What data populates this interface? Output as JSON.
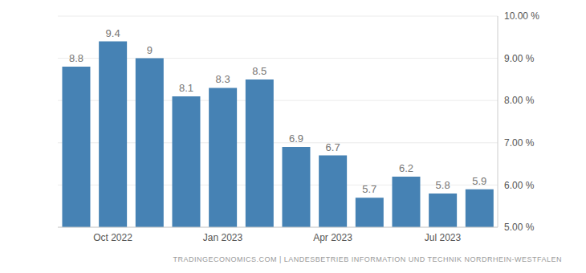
{
  "chart_data": {
    "type": "bar",
    "categories": [
      null,
      "Oct 2022",
      null,
      null,
      "Jan 2023",
      null,
      null,
      "Apr 2023",
      null,
      null,
      "Jul 2023",
      null
    ],
    "values": [
      8.8,
      9.4,
      9,
      8.1,
      8.3,
      8.5,
      6.9,
      6.7,
      5.7,
      6.2,
      5.8,
      5.9
    ],
    "color": "#4682b4",
    "ylim": [
      5,
      10
    ],
    "yticks": [
      {
        "value": 5,
        "label": "5.00 %"
      },
      {
        "value": 6,
        "label": "6.00 %"
      },
      {
        "value": 7,
        "label": "7.00 %"
      },
      {
        "value": 8,
        "label": "8.00 %"
      },
      {
        "value": 9,
        "label": "9.00 %"
      },
      {
        "value": 10,
        "label": "10.00 %"
      }
    ],
    "grid": true,
    "data_labels": true,
    "annotations": [
      "TRADINGECONOMICS.COM | LANDESBETRIEB INFORMATION UND TECHNIK NORDRHEIN-WESTFALEN"
    ]
  }
}
